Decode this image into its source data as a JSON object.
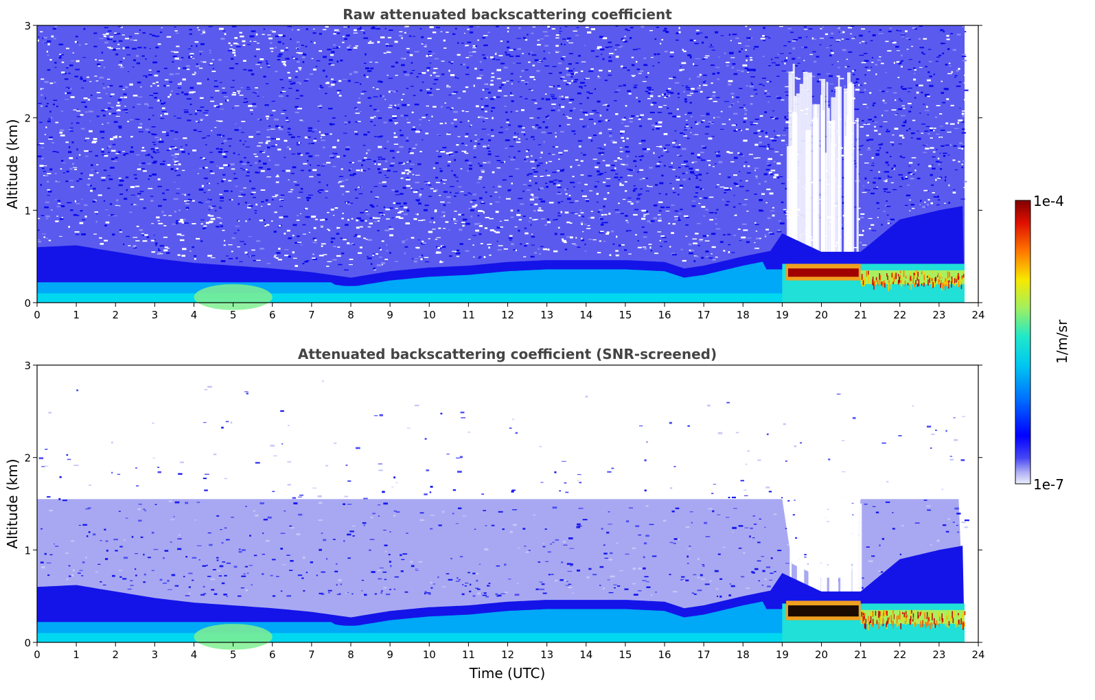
{
  "chart_data": [
    {
      "type": "heatmap",
      "title": "Raw attenuated backscattering coefficient",
      "xlabel": "",
      "ylabel": "Altitude (km)",
      "xlim": [
        0,
        24
      ],
      "ylim": [
        0,
        3
      ],
      "x_ticks": [
        0,
        1,
        2,
        3,
        4,
        5,
        6,
        7,
        8,
        9,
        10,
        11,
        12,
        13,
        14,
        15,
        16,
        17,
        18,
        19,
        20,
        21,
        22,
        23,
        24
      ],
      "y_ticks": [
        0,
        1,
        2,
        3
      ],
      "data_end_time": 23.65,
      "screened": false,
      "boundary_layer_top_km": {
        "time": [
          0,
          1,
          2,
          3,
          4,
          5,
          6,
          7,
          8,
          9,
          10,
          11,
          12,
          13,
          14,
          15,
          16,
          16.5,
          17,
          18,
          18.7,
          19,
          20,
          21,
          22,
          23,
          23.65
        ],
        "top": [
          0.6,
          0.62,
          0.55,
          0.48,
          0.43,
          0.4,
          0.37,
          0.33,
          0.27,
          0.34,
          0.38,
          0.4,
          0.44,
          0.46,
          0.46,
          0.46,
          0.44,
          0.37,
          0.4,
          0.5,
          0.56,
          0.75,
          0.55,
          0.55,
          0.9,
          1.0,
          1.05
        ]
      },
      "dense_aerosol_layer_km": {
        "time": [
          19.1,
          21.0
        ],
        "bottom": 0.24,
        "top": 0.42
      },
      "aerosol_layer_km": {
        "time": [
          21.0,
          23.65
        ],
        "bottom": 0.2,
        "top": 0.35
      }
    },
    {
      "type": "heatmap",
      "title": "Attenuated backscattering coefficient (SNR-screened)",
      "xlabel": "Time (UTC)",
      "ylabel": "Altitude (km)",
      "xlim": [
        0,
        24
      ],
      "ylim": [
        0,
        3
      ],
      "x_ticks": [
        0,
        1,
        2,
        3,
        4,
        5,
        6,
        7,
        8,
        9,
        10,
        11,
        12,
        13,
        14,
        15,
        16,
        17,
        18,
        19,
        20,
        21,
        22,
        23,
        24
      ],
      "y_ticks": [
        0,
        1,
        2,
        3
      ],
      "data_end_time": 23.65,
      "screened": true,
      "boundary_layer_top_km": {
        "time": [
          0,
          1,
          2,
          3,
          4,
          5,
          6,
          7,
          8,
          9,
          10,
          11,
          12,
          13,
          14,
          15,
          16,
          16.5,
          17,
          18,
          18.7,
          19,
          20,
          21,
          22,
          23,
          23.65
        ],
        "top": [
          0.6,
          0.62,
          0.55,
          0.48,
          0.43,
          0.4,
          0.37,
          0.33,
          0.27,
          0.34,
          0.38,
          0.4,
          0.44,
          0.46,
          0.46,
          0.46,
          0.44,
          0.37,
          0.4,
          0.5,
          0.56,
          0.75,
          0.55,
          0.55,
          0.9,
          1.0,
          1.05
        ]
      },
      "dense_aerosol_layer_km": {
        "time": [
          19.1,
          21.0
        ],
        "bottom": 0.24,
        "top": 0.45
      },
      "aerosol_layer_km": {
        "time": [
          21.0,
          23.65
        ],
        "bottom": 0.2,
        "top": 0.35
      }
    }
  ],
  "colorbar": {
    "label": "1/m/sr",
    "min_label": "1e-7",
    "max_label": "1e-4",
    "scale": "log",
    "range": [
      1e-07,
      0.0001
    ],
    "colormap": "jet"
  }
}
